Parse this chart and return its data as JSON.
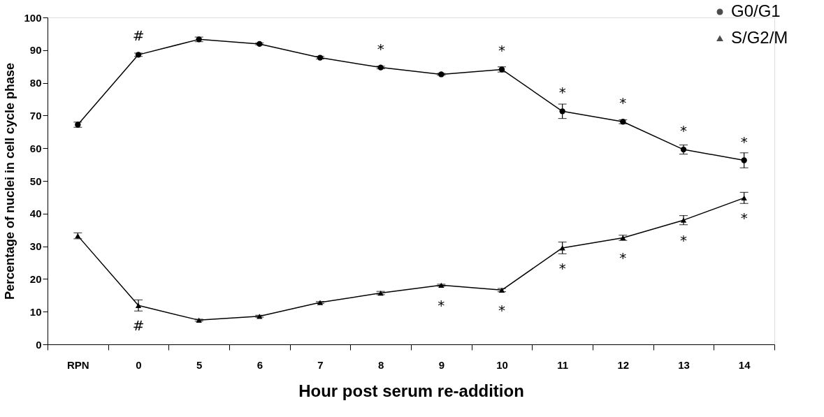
{
  "chart_data": {
    "type": "line",
    "xlabel": "Hour post serum re-addition",
    "ylabel": "Percentage of nuclei in cell cycle phase",
    "categories": [
      "RPN",
      "0",
      "5",
      "6",
      "7",
      "8",
      "9",
      "10",
      "11",
      "12",
      "13",
      "14"
    ],
    "ylim": [
      0,
      100
    ],
    "yticks": [
      0,
      10,
      20,
      30,
      40,
      50,
      60,
      70,
      80,
      90,
      100
    ],
    "grid": false,
    "legend": "top right",
    "line_style": "solid",
    "series": [
      {
        "name": "G0/G1",
        "color": "#000000",
        "marker": "circle",
        "values": [
          67.2,
          88.6,
          93.3,
          91.9,
          87.7,
          84.7,
          82.6,
          84.1,
          71.3,
          68.1,
          59.6,
          56.3
        ],
        "errors": [
          0.8,
          0.5,
          0.7,
          0.3,
          0.4,
          0.4,
          0.3,
          0.8,
          2.2,
          0.6,
          1.4,
          2.3
        ]
      },
      {
        "name": "S/G2/M",
        "color": "#000000",
        "marker": "triangle",
        "values": [
          33.2,
          11.9,
          7.4,
          8.6,
          12.8,
          15.7,
          18.1,
          16.6,
          29.5,
          32.6,
          38.0,
          44.8
        ],
        "errors": [
          0.9,
          1.7,
          0.3,
          0.3,
          0.3,
          0.5,
          0.3,
          0.5,
          1.8,
          0.8,
          1.4,
          1.7
        ]
      }
    ],
    "annotations": [
      {
        "text": "#",
        "x": "0",
        "y": 88.6
      },
      {
        "text": "*",
        "x": "8",
        "y": 84.7
      },
      {
        "text": "*",
        "x": "10",
        "y": 84.1
      },
      {
        "text": "*",
        "x": "11",
        "y": 71.3
      },
      {
        "text": "*",
        "x": "12",
        "y": 68.1
      },
      {
        "text": "*",
        "x": "13",
        "y": 59.6
      },
      {
        "text": "*",
        "x": "14",
        "y": 56.3
      },
      {
        "text": "#",
        "x": "0",
        "y": 11.9
      },
      {
        "text": "*",
        "x": "9",
        "y": 18.1
      },
      {
        "text": "*",
        "x": "10",
        "y": 16.6
      },
      {
        "text": "*",
        "x": "11",
        "y": 29.5
      },
      {
        "text": "*",
        "x": "12",
        "y": 32.6
      },
      {
        "text": "*",
        "x": "13",
        "y": 38.0
      },
      {
        "text": "*",
        "x": "14",
        "y": 44.8
      }
    ]
  }
}
